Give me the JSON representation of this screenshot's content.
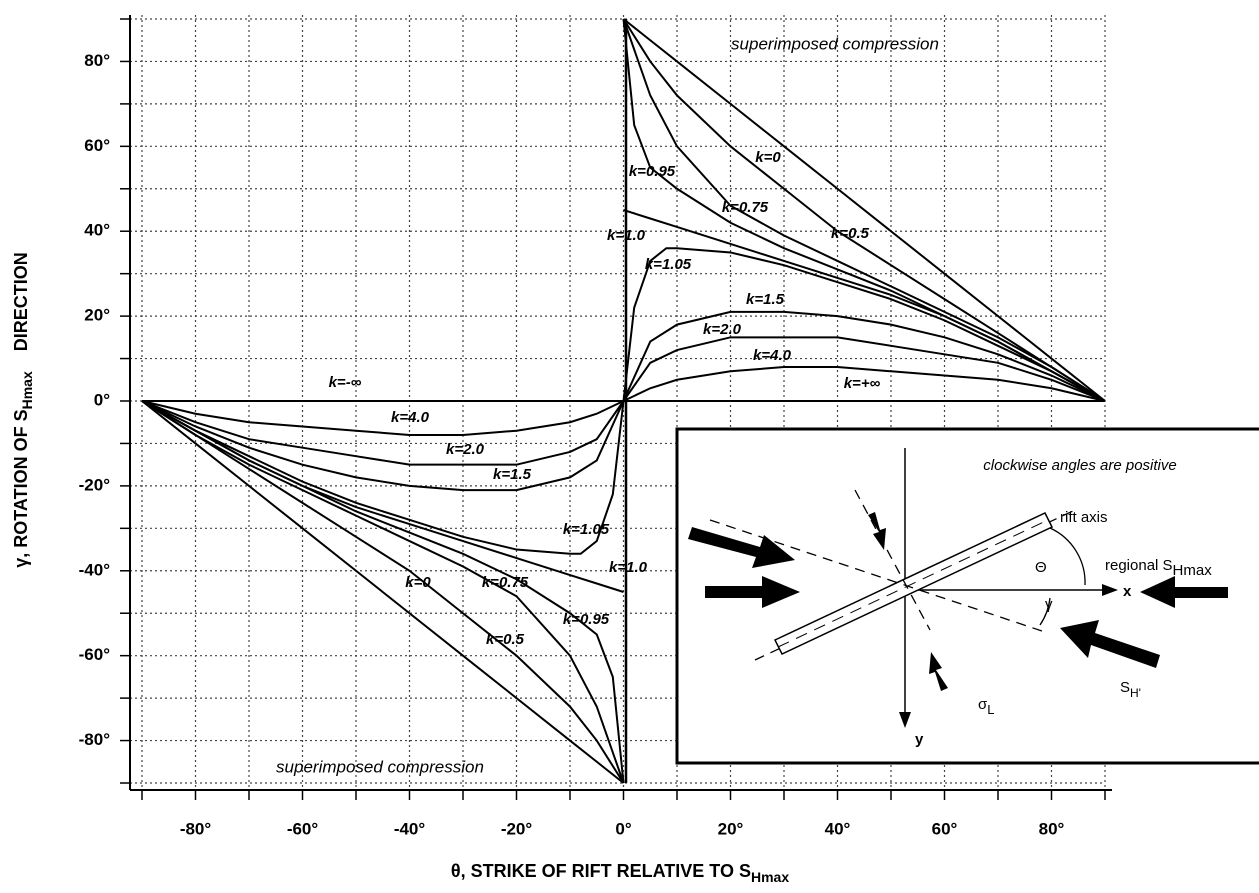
{
  "chart_data": {
    "type": "line",
    "ylabel": [
      "γ, ROTATION OF S",
      "Hmax",
      "DIRECTION"
    ],
    "xlabel": [
      "θ,  STRIKE OF RIFT RELATIVE TO S",
      "Hmax"
    ],
    "annotations": [
      "superimposed compression",
      "superimposed compression"
    ],
    "xlim": [
      -90,
      90
    ],
    "ylim": [
      -90,
      90
    ],
    "xticks": [
      {
        "value": -80,
        "label": "-80°"
      },
      {
        "value": -60,
        "label": "-60°"
      },
      {
        "value": -40,
        "label": "-40°"
      },
      {
        "value": -20,
        "label": "-20°"
      },
      {
        "value": 0,
        "label": "0°"
      },
      {
        "value": 20,
        "label": "20°"
      },
      {
        "value": 40,
        "label": "40°"
      },
      {
        "value": 60,
        "label": "60°"
      },
      {
        "value": 80,
        "label": "80°"
      }
    ],
    "yticks": [
      {
        "value": 80,
        "label": "80°"
      },
      {
        "value": 60,
        "label": "60°"
      },
      {
        "value": 40,
        "label": "40°"
      },
      {
        "value": 20,
        "label": "20°"
      },
      {
        "value": 0,
        "label": "0°"
      },
      {
        "value": -20,
        "label": "-20°"
      },
      {
        "value": -40,
        "label": "-40°"
      },
      {
        "value": -60,
        "label": "-60°"
      },
      {
        "value": -80,
        "label": "-80°"
      }
    ],
    "minor_xticks": [
      -90,
      -70,
      -50,
      -30,
      -10,
      10,
      30,
      50,
      70,
      90
    ],
    "minor_yticks": [
      -90,
      -70,
      -50,
      -30,
      -10,
      10,
      30,
      50,
      70,
      90
    ],
    "grid": true,
    "color": "#000000",
    "series": [
      {
        "name": "k=0",
        "x": [
          0,
          5,
          10,
          20,
          30,
          40,
          50,
          60,
          70,
          80,
          90
        ],
        "values": [
          90,
          85,
          80,
          70,
          60,
          50,
          40,
          30,
          20,
          10,
          0
        ]
      },
      {
        "name": "k=0.5",
        "x": [
          0,
          5,
          10,
          20,
          30,
          40,
          50,
          60,
          70,
          80,
          90
        ],
        "values": [
          90,
          80,
          72,
          60,
          50,
          40,
          32,
          24,
          16,
          8,
          0
        ]
      },
      {
        "name": "k=0.75",
        "x": [
          0,
          5,
          10,
          20,
          30,
          40,
          50,
          60,
          70,
          80,
          90
        ],
        "values": [
          90,
          72,
          60,
          46,
          39,
          33,
          27,
          21,
          15,
          8,
          0
        ]
      },
      {
        "name": "k=0.95",
        "x": [
          0,
          2,
          5,
          10,
          20,
          30,
          40,
          50,
          60,
          70,
          80,
          90
        ],
        "values": [
          90,
          65,
          55,
          50,
          42,
          36,
          31,
          26,
          20,
          14,
          7,
          0
        ]
      },
      {
        "name": "k=1.0",
        "x": [
          0,
          5,
          10,
          20,
          30,
          40,
          50,
          60,
          70,
          80,
          90
        ],
        "values": [
          45,
          43,
          41,
          37,
          33,
          29,
          25,
          20,
          14,
          7,
          0
        ]
      },
      {
        "name": "k=1.05",
        "x": [
          0,
          2,
          5,
          8,
          10,
          20,
          30,
          40,
          50,
          60,
          70,
          80,
          90
        ],
        "values": [
          0,
          22,
          33,
          36,
          36,
          35,
          32,
          28,
          24,
          19,
          13,
          7,
          0
        ]
      },
      {
        "name": "k=1.5",
        "x": [
          0,
          5,
          10,
          20,
          30,
          40,
          50,
          60,
          70,
          80,
          90
        ],
        "values": [
          0,
          14,
          18,
          21,
          21,
          20,
          18,
          15,
          11,
          6,
          0
        ]
      },
      {
        "name": "k=2.0",
        "x": [
          0,
          5,
          10,
          20,
          30,
          40,
          50,
          60,
          70,
          80,
          90
        ],
        "values": [
          0,
          9,
          12,
          15,
          15,
          15,
          13,
          11,
          9,
          5,
          0
        ]
      },
      {
        "name": "k=4.0",
        "x": [
          0,
          5,
          10,
          20,
          30,
          40,
          50,
          60,
          70,
          80,
          90
        ],
        "values": [
          0,
          3,
          5,
          7,
          8,
          8,
          7,
          6,
          5,
          3,
          0
        ]
      },
      {
        "name": "k=+∞",
        "x": [
          0,
          90
        ],
        "values": [
          0,
          0
        ]
      },
      {
        "name": "k=0",
        "x": [
          0,
          -5,
          -10,
          -20,
          -30,
          -40,
          -50,
          -60,
          -70,
          -80,
          -90
        ],
        "values": [
          -90,
          -85,
          -80,
          -70,
          -60,
          -50,
          -40,
          -30,
          -20,
          -10,
          0
        ]
      },
      {
        "name": "k=0.5",
        "x": [
          0,
          -5,
          -10,
          -20,
          -30,
          -40,
          -50,
          -60,
          -70,
          -80,
          -90
        ],
        "values": [
          -90,
          -80,
          -72,
          -60,
          -50,
          -40,
          -32,
          -24,
          -16,
          -8,
          0
        ]
      },
      {
        "name": "k=0.75",
        "x": [
          0,
          -5,
          -10,
          -20,
          -30,
          -40,
          -50,
          -60,
          -70,
          -80,
          -90
        ],
        "values": [
          -90,
          -72,
          -60,
          -46,
          -39,
          -33,
          -27,
          -21,
          -15,
          -8,
          0
        ]
      },
      {
        "name": "k=0.95",
        "x": [
          0,
          -2,
          -5,
          -10,
          -20,
          -30,
          -40,
          -50,
          -60,
          -70,
          -80,
          -90
        ],
        "values": [
          -90,
          -65,
          -55,
          -50,
          -42,
          -36,
          -31,
          -26,
          -20,
          -14,
          -7,
          0
        ]
      },
      {
        "name": "k=1.0",
        "x": [
          0,
          -5,
          -10,
          -20,
          -30,
          -40,
          -50,
          -60,
          -70,
          -80,
          -90
        ],
        "values": [
          -45,
          -43,
          -41,
          -37,
          -33,
          -29,
          -25,
          -20,
          -14,
          -7,
          0
        ]
      },
      {
        "name": "k=1.05",
        "x": [
          0,
          -2,
          -5,
          -8,
          -10,
          -20,
          -30,
          -40,
          -50,
          -60,
          -70,
          -80,
          -90
        ],
        "values": [
          0,
          -22,
          -33,
          -36,
          -36,
          -35,
          -32,
          -28,
          -24,
          -19,
          -13,
          -7,
          0
        ]
      },
      {
        "name": "k=1.5",
        "x": [
          0,
          -5,
          -10,
          -20,
          -30,
          -40,
          -50,
          -60,
          -70,
          -80,
          -90
        ],
        "values": [
          0,
          -14,
          -18,
          -21,
          -21,
          -20,
          -18,
          -15,
          -11,
          -6,
          0
        ]
      },
      {
        "name": "k=2.0",
        "x": [
          0,
          -5,
          -10,
          -20,
          -30,
          -40,
          -50,
          -60,
          -70,
          -80,
          -90
        ],
        "values": [
          0,
          -9,
          -12,
          -15,
          -15,
          -15,
          -13,
          -11,
          -9,
          -5,
          0
        ]
      },
      {
        "name": "k=4.0",
        "x": [
          0,
          -5,
          -10,
          -20,
          -30,
          -40,
          -50,
          -60,
          -70,
          -80,
          -90
        ],
        "values": [
          0,
          -3,
          -5,
          -7,
          -8,
          -8,
          -7,
          -6,
          -5,
          -3,
          0
        ]
      },
      {
        "name": "k=-∞",
        "x": [
          0,
          -90
        ],
        "values": [
          0,
          0
        ]
      }
    ],
    "inset": {
      "title": "clockwise angles are positive",
      "rift": "rift axis",
      "regional": {
        "text": "regional S",
        "sub": "Hmax"
      },
      "theta": "Θ",
      "gamma": "γ",
      "x": "x",
      "y": "y",
      "sigma": {
        "text": "σ",
        "sub": "L"
      },
      "sh": {
        "text": "S",
        "sub": "H'"
      }
    }
  }
}
